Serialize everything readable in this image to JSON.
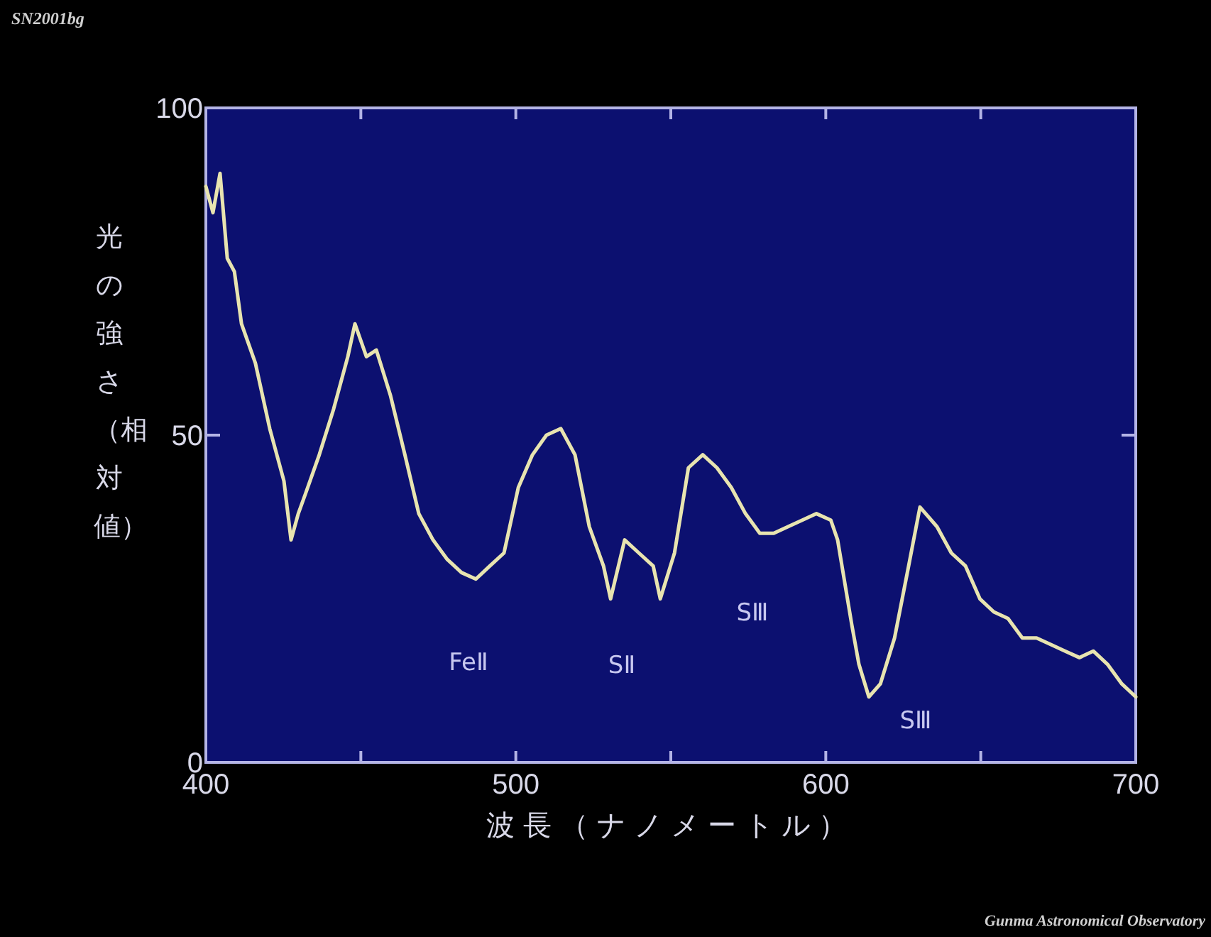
{
  "chart_data": {
    "type": "line",
    "title": "SN2001bg",
    "xlabel": "波長（ナノメートル）",
    "ylabel": "光の強さ（相対値）",
    "x": [
      400,
      402.3,
      404.6,
      406.9,
      409.2,
      411.5,
      416,
      420.6,
      425.2,
      427.5,
      429.8,
      432.1,
      436.6,
      441.2,
      445.8,
      448.1,
      451.8,
      455,
      459.6,
      464.2,
      468.7,
      473.3,
      477.9,
      482.5,
      487.1,
      491.6,
      496.2,
      500.8,
      505.4,
      509.9,
      514.5,
      519.1,
      523.7,
      528.3,
      530.6,
      535.1,
      539.7,
      544.3,
      546.6,
      551.2,
      555.7,
      560.3,
      564.9,
      569.5,
      574.1,
      578.7,
      583.2,
      587.8,
      592.4,
      597,
      601.6,
      603.8,
      608.4,
      610.7,
      613.9,
      617.6,
      622.2,
      626.7,
      630.4,
      635.9,
      640.5,
      645.1,
      649.7,
      654.2,
      658.8,
      663.4,
      668,
      672.6,
      677.2,
      681.8,
      686.3,
      690.9,
      695.5,
      700
    ],
    "series": [
      {
        "color": "#e8e4b0",
        "values": [
          88,
          84,
          90,
          77,
          75,
          67,
          61,
          51,
          43,
          34,
          38,
          41,
          47,
          54,
          62,
          67,
          62,
          63,
          56,
          47,
          38,
          34,
          31,
          29,
          28,
          30,
          32,
          42,
          47,
          50,
          51,
          47,
          36,
          30,
          25,
          34,
          32,
          30,
          25,
          32,
          45,
          47,
          45,
          42,
          38,
          35,
          35,
          36,
          37,
          38,
          37,
          34,
          21,
          15,
          10,
          12,
          19,
          30,
          39,
          36,
          32,
          30,
          25,
          23,
          22,
          19,
          19,
          18,
          17,
          16,
          17,
          15,
          12,
          10
        ]
      }
    ],
    "xlim": [
      400,
      700
    ],
    "ylim": [
      0,
      100
    ],
    "xticks": [
      400,
      {
        "value": 450,
        "label": null
      },
      500,
      {
        "value": 550,
        "label": null
      },
      600,
      {
        "value": 650,
        "label": null
      },
      700
    ],
    "yticks": [
      0,
      50,
      100
    ],
    "annotations": [
      "FeⅡ",
      "SⅡ",
      "SⅢ",
      "SⅢ",
      "Gunma Astronomical Observatory"
    ]
  }
}
